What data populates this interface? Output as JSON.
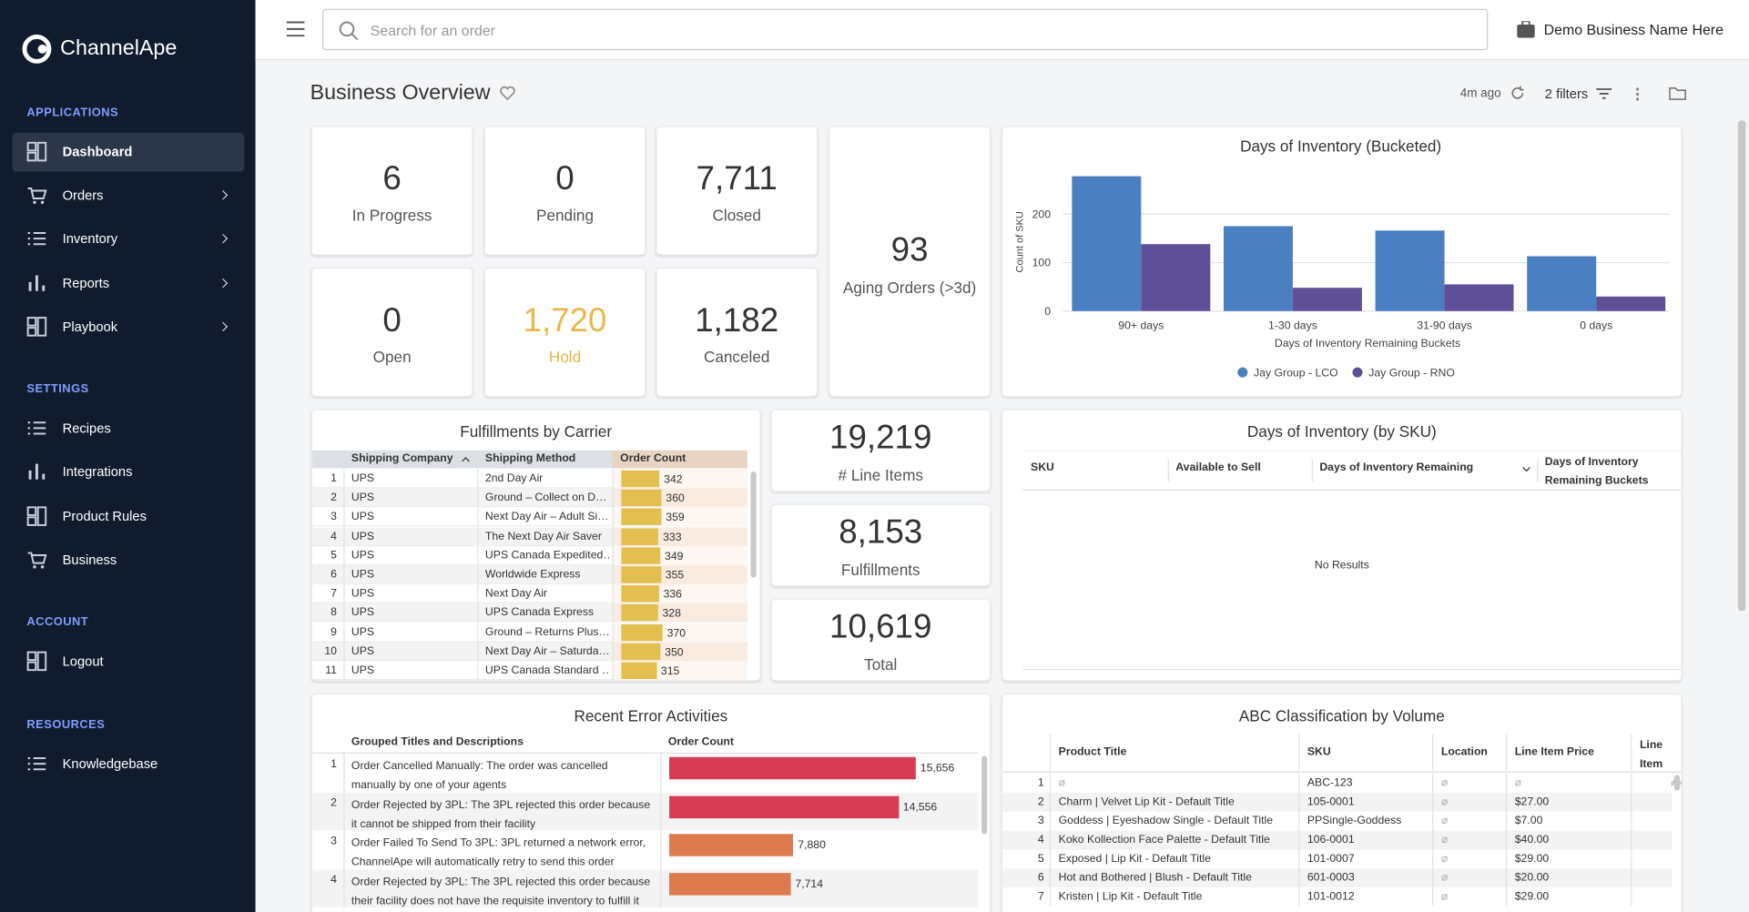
{
  "sidebar": {
    "brand": "ChannelApe",
    "sections": [
      {
        "title": "APPLICATIONS",
        "items": [
          "Dashboard",
          "Orders",
          "Inventory",
          "Reports",
          "Playbook"
        ]
      },
      {
        "title": "SETTINGS",
        "items": [
          "Recipes",
          "Integrations",
          "Product Rules",
          "Business"
        ]
      },
      {
        "title": "ACCOUNT",
        "items": [
          "Logout"
        ]
      },
      {
        "title": "RESOURCES",
        "items": [
          "Knowledgebase"
        ]
      }
    ]
  },
  "topbar": {
    "search_placeholder": "Search for an order",
    "business": "Demo Business Name Here"
  },
  "header": {
    "title": "Business Overview",
    "updated": "4m ago",
    "filters": "2 filters"
  },
  "kpis": [
    {
      "value": "6",
      "label": "In Progress"
    },
    {
      "value": "0",
      "label": "Pending"
    },
    {
      "value": "7,711",
      "label": "Closed"
    },
    {
      "value": "93",
      "label": "Aging Orders (>3d)"
    },
    {
      "value": "0",
      "label": "Open"
    },
    {
      "value": "1,720",
      "label": "Hold"
    },
    {
      "value": "1,182",
      "label": "Canceled"
    },
    {
      "value": "19,219",
      "label": "# Line Items"
    },
    {
      "value": "8,153",
      "label": "Fulfillments"
    },
    {
      "value": "10,619",
      "label": "Total"
    }
  ],
  "inventory_chart": {
    "type": "bar",
    "title": "Days of Inventory (Bucketed)",
    "y_label": "Count of SKU",
    "x_label": "Days of Inventory Remaining Buckets",
    "categories": [
      "90+ days",
      "1-30 days",
      "31-90 days",
      "0 days"
    ],
    "series": [
      {
        "name": "Jay Group - LCO",
        "color": "#4a7fc1",
        "values": [
          278,
          175,
          166,
          113
        ]
      },
      {
        "name": "Jay Group - RNO",
        "color": "#5f4f96",
        "values": [
          138,
          48,
          55,
          30
        ]
      }
    ],
    "ylim": [
      0,
      285
    ],
    "yticks": [
      0,
      100,
      200
    ],
    "grid": true
  },
  "carrier_table": {
    "title": "Fulfillments by Carrier",
    "columns": [
      "Shipping Company",
      "Shipping Method",
      "Order Count"
    ],
    "rows": [
      {
        "n": "1",
        "company": "UPS",
        "method": "2nd Day Air",
        "count": 342
      },
      {
        "n": "2",
        "company": "UPS",
        "method": "Ground – Collect on D…",
        "count": 360
      },
      {
        "n": "3",
        "company": "UPS",
        "method": "Next Day Air – Adult Si…",
        "count": 359
      },
      {
        "n": "4",
        "company": "UPS",
        "method": "The Next Day Air Saver",
        "count": 333
      },
      {
        "n": "5",
        "company": "UPS",
        "method": "UPS Canada Expedited…",
        "count": 349
      },
      {
        "n": "6",
        "company": "UPS",
        "method": "Worldwide Express",
        "count": 355
      },
      {
        "n": "7",
        "company": "UPS",
        "method": "Next Day Air",
        "count": 336
      },
      {
        "n": "8",
        "company": "UPS",
        "method": "UPS Canada Express",
        "count": 328
      },
      {
        "n": "9",
        "company": "UPS",
        "method": "Ground – Returns Plus…",
        "count": 370
      },
      {
        "n": "10",
        "company": "UPS",
        "method": "Next Day Air – Saturda…",
        "count": 350
      },
      {
        "n": "11",
        "company": "UPS",
        "method": "UPS Canada Standard …",
        "count": 315
      }
    ],
    "bar_color": "#e2bf4e"
  },
  "error_table": {
    "title": "Recent Error Activities",
    "columns": [
      "Grouped Titles and Descriptions",
      "Order Count"
    ],
    "rows": [
      {
        "n": "1",
        "text": "Order Cancelled Manually: The order was cancelled manually by one of your agents",
        "count": 15656,
        "count_label": "15,656",
        "color": "#d63c55"
      },
      {
        "n": "2",
        "text": "Order Rejected by 3PL: The 3PL rejected this order because it cannot be shipped from their facility",
        "count": 14556,
        "count_label": "14,556",
        "color": "#d63c55"
      },
      {
        "n": "3",
        "text": "Order Failed To Send To 3PL: 3PL returned a network error, ChannelApe will automatically retry to send this order",
        "count": 7880,
        "count_label": "7,880",
        "color": "#dd7b4e"
      },
      {
        "n": "4",
        "text": "Order Rejected by 3PL: The 3PL rejected this order because their facility does not have the requisite inventory to fulfill it",
        "count": 7714,
        "count_label": "7,714",
        "color": "#dd7b4e"
      }
    ]
  },
  "sku_table": {
    "title": "Days of Inventory (by SKU)",
    "columns": [
      "SKU",
      "Available to Sell",
      "Days of Inventory Remaining",
      "Days of Inventory Remaining Buckets"
    ],
    "empty": "No Results"
  },
  "abc_table": {
    "title": "ABC Classification by Volume",
    "columns": [
      "Product Title",
      "SKU",
      "Location",
      "Line Item Price",
      "Line Item Revenue"
    ],
    "rows": [
      {
        "n": "1",
        "title": "⌀",
        "sku": "ABC-123",
        "location": "⌀",
        "price": "⌀"
      },
      {
        "n": "2",
        "title": "Charm | Velvet Lip Kit - Default Title",
        "sku": "105-0001",
        "location": "⌀",
        "price": "$27.00"
      },
      {
        "n": "3",
        "title": "Goddess | Eyeshadow Single - Default Title",
        "sku": "PPSingle-Goddess",
        "location": "⌀",
        "price": "$7.00"
      },
      {
        "n": "4",
        "title": "Koko Kollection Face Palette - Default Title",
        "sku": "106-0001",
        "location": "⌀",
        "price": "$40.00"
      },
      {
        "n": "5",
        "title": "Exposed | Lip Kit - Default Title",
        "sku": "101-0007",
        "location": "⌀",
        "price": "$29.00"
      },
      {
        "n": "6",
        "title": "Hot and Bothered | Blush - Default Title",
        "sku": "601-0003",
        "location": "⌀",
        "price": "$20.00"
      },
      {
        "n": "7",
        "title": "Kristen | Lip Kit - Default Title",
        "sku": "101-0012",
        "location": "⌀",
        "price": "$29.00"
      }
    ]
  }
}
